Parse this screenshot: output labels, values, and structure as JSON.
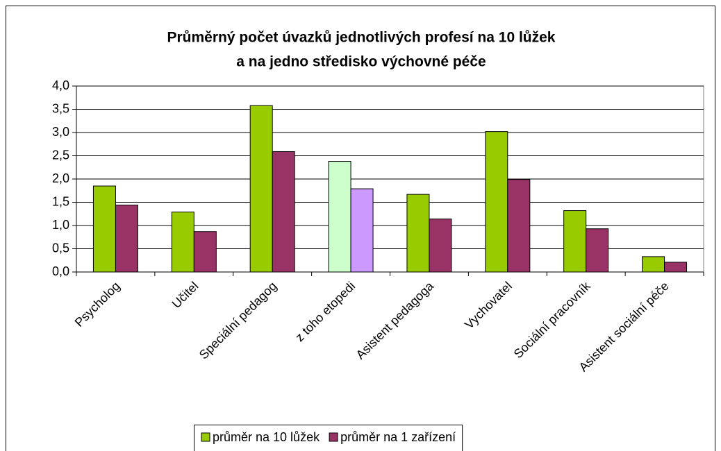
{
  "chart_data": {
    "type": "bar",
    "title": [
      "Průměrný počet úvazků jednotlivých profesí na 10 lůžek",
      "a na jedno středisko výchovné péče"
    ],
    "categories": [
      "Psycholog",
      "Učitel",
      "Speciální pedagog",
      "z toho etopedi",
      "Asistent pedagoga",
      "Vychovatel",
      "Sociální pracovník",
      "Asistent sociální péče"
    ],
    "series": [
      {
        "name": "průměr na 10 lůžek",
        "color": "#99cc00",
        "point_colors": [
          null,
          null,
          null,
          "#ccffcc",
          null,
          null,
          null,
          null
        ],
        "values": [
          1.85,
          1.29,
          3.58,
          2.38,
          1.67,
          3.02,
          1.32,
          0.33
        ]
      },
      {
        "name": "průměr na 1 zařízení",
        "color": "#993366",
        "point_colors": [
          null,
          null,
          null,
          "#cc99ff",
          null,
          null,
          null,
          null
        ],
        "values": [
          1.44,
          0.87,
          2.59,
          1.79,
          1.14,
          1.99,
          0.93,
          0.21
        ]
      }
    ],
    "ylim": [
      0,
      4
    ],
    "yticks": [
      {
        "value": 0,
        "label": "0,0"
      },
      {
        "value": 0.5,
        "label": "0,5"
      },
      {
        "value": 1,
        "label": "1,0"
      },
      {
        "value": 1.5,
        "label": "1,5"
      },
      {
        "value": 2,
        "label": "2,0"
      },
      {
        "value": 2.5,
        "label": "2,5"
      },
      {
        "value": 3,
        "label": "3,0"
      },
      {
        "value": 3.5,
        "label": "3,5"
      },
      {
        "value": 4,
        "label": "4,0"
      }
    ],
    "grid": true,
    "legend": "bottom"
  }
}
